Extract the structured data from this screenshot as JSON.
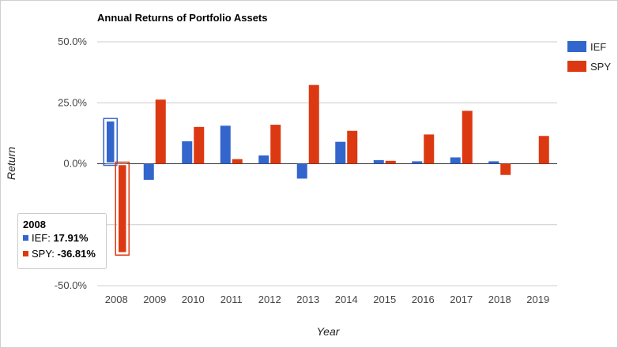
{
  "chart_data": {
    "type": "bar",
    "title": "Annual Returns of Portfolio Assets",
    "xlabel": "Year",
    "ylabel": "Return",
    "categories": [
      "2008",
      "2009",
      "2010",
      "2011",
      "2012",
      "2013",
      "2014",
      "2015",
      "2016",
      "2017",
      "2018",
      "2019"
    ],
    "series": [
      {
        "name": "IEF",
        "color": "#3366cc",
        "values": [
          17.91,
          -6.6,
          9.2,
          15.6,
          3.4,
          -6.1,
          9.0,
          1.5,
          1.0,
          2.6,
          1.0,
          0.0
        ]
      },
      {
        "name": "SPY",
        "color": "#dc3912",
        "values": [
          -36.81,
          26.3,
          15.1,
          1.9,
          16.0,
          32.3,
          13.5,
          1.2,
          12.0,
          21.7,
          -4.6,
          11.4
        ]
      }
    ],
    "ylim": [
      -50,
      50
    ],
    "yticks": [
      -50,
      -25,
      0,
      25,
      50
    ],
    "ytick_labels": [
      "-50.0%",
      "-25.0%",
      "0.0%",
      "25.0%",
      "50.0%"
    ],
    "grid": true,
    "legend_position": "right",
    "tooltip": {
      "title": "2008",
      "rows": [
        {
          "label": "IEF:",
          "value": "17.91%"
        },
        {
          "label": "SPY:",
          "value": "-36.81%"
        }
      ]
    }
  }
}
